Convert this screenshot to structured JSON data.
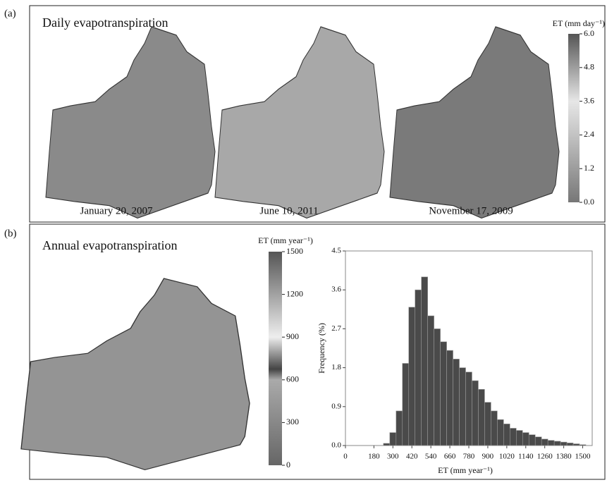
{
  "panel_a": {
    "label": "(a)",
    "title": "Daily evapotranspiration",
    "dates": [
      "January 20, 2007",
      "June 10, 2011",
      "November 17, 2009"
    ],
    "colorbar": {
      "label": "ET (mm day⁻¹)",
      "lim": [
        0,
        6
      ],
      "ticks": [
        {
          "value": 0,
          "label": "0.0"
        },
        1.2,
        2.4,
        3.6,
        4.8,
        {
          "value": 6,
          "label": "6.0"
        }
      ]
    }
  },
  "panel_b": {
    "label": "(b)",
    "title": "Annual evapotranspiration",
    "colorbar": {
      "label": "ET (mm year⁻¹)",
      "lim": [
        0,
        1500
      ],
      "ticks": [
        0,
        300,
        600,
        900,
        1200,
        1500
      ]
    }
  },
  "chart_data": {
    "type": "histogram",
    "xlabel": "ET (mm year⁻¹)",
    "ylabel": "Frequency (%)",
    "color": "#4a4a4a",
    "bins": [
      240,
      280,
      320,
      360,
      400,
      440,
      480,
      520,
      560,
      600,
      640,
      680,
      720,
      760,
      800,
      840,
      880,
      920,
      960,
      1000,
      1040,
      1080,
      1120,
      1160,
      1200,
      1240,
      1280,
      1320,
      1360,
      1400,
      1440,
      1480,
      1520
    ],
    "values": [
      0.05,
      0.3,
      0.8,
      1.9,
      3.2,
      3.6,
      3.9,
      3.0,
      2.7,
      2.4,
      2.2,
      2.0,
      1.8,
      1.7,
      1.5,
      1.3,
      1.0,
      0.8,
      0.6,
      0.5,
      0.4,
      0.35,
      0.3,
      0.25,
      0.2,
      0.15,
      0.12,
      0.1,
      0.08,
      0.06,
      0.04,
      0.02
    ],
    "xlim": [
      0,
      1560
    ],
    "ylim": [
      0,
      4.5
    ],
    "xticks": [
      0,
      180,
      300,
      420,
      540,
      660,
      780,
      900,
      1020,
      1140,
      1260,
      1380,
      1500
    ],
    "yticks": [
      {
        "value": 0,
        "label": "0.0"
      },
      0.9,
      1.8,
      2.7,
      3.6,
      4.5
    ]
  }
}
